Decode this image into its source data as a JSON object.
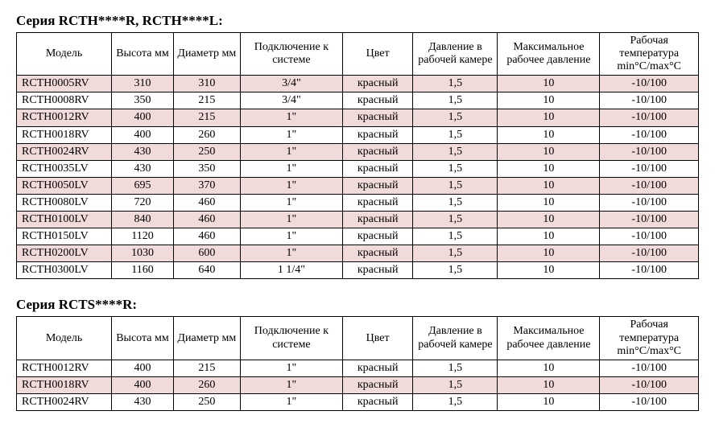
{
  "table1": {
    "title": "Серия RCTH****R, RCTH****L:",
    "shaded_row_bg": "#f1dada",
    "columns": [
      "Модель",
      "Высота мм",
      "Диаметр мм",
      "Подключение к системе",
      "Цвет",
      "Давление в рабочей камере",
      "Максимальное рабочее давление",
      "Рабочая температура min°C/max°C"
    ],
    "rows": [
      {
        "shaded": true,
        "cells": [
          "RCTH0005RV",
          "310",
          "310",
          "3/4\"",
          "красный",
          "1,5",
          "10",
          "-10/100"
        ]
      },
      {
        "shaded": false,
        "cells": [
          "RCTH0008RV",
          "350",
          "215",
          "3/4\"",
          "красный",
          "1,5",
          "10",
          "-10/100"
        ]
      },
      {
        "shaded": true,
        "cells": [
          "RCTH0012RV",
          "400",
          "215",
          "1\"",
          "красный",
          "1,5",
          "10",
          "-10/100"
        ]
      },
      {
        "shaded": false,
        "cells": [
          "RCTH0018RV",
          "400",
          "260",
          "1\"",
          "красный",
          "1,5",
          "10",
          "-10/100"
        ]
      },
      {
        "shaded": true,
        "cells": [
          "RCTH0024RV",
          "430",
          "250",
          "1\"",
          "красный",
          "1,5",
          "10",
          "-10/100"
        ]
      },
      {
        "shaded": false,
        "cells": [
          "RCTH0035LV",
          "430",
          "350",
          "1\"",
          "красный",
          "1,5",
          "10",
          "-10/100"
        ]
      },
      {
        "shaded": true,
        "cells": [
          "RCTH0050LV",
          "695",
          "370",
          "1\"",
          "красный",
          "1,5",
          "10",
          "-10/100"
        ]
      },
      {
        "shaded": false,
        "cells": [
          "RCTH0080LV",
          "720",
          "460",
          "1\"",
          "красный",
          "1,5",
          "10",
          "-10/100"
        ]
      },
      {
        "shaded": true,
        "cells": [
          "RCTH0100LV",
          "840",
          "460",
          "1\"",
          "красный",
          "1,5",
          "10",
          "-10/100"
        ]
      },
      {
        "shaded": false,
        "cells": [
          "RCTH0150LV",
          "1120",
          "460",
          "1\"",
          "красный",
          "1,5",
          "10",
          "-10/100"
        ]
      },
      {
        "shaded": true,
        "cells": [
          "RCTH0200LV",
          "1030",
          "600",
          "1\"",
          "красный",
          "1,5",
          "10",
          "-10/100"
        ]
      },
      {
        "shaded": false,
        "cells": [
          "RCTH0300LV",
          "1160",
          "640",
          "1 1/4\"",
          "красный",
          "1,5",
          "10",
          "-10/100"
        ]
      }
    ]
  },
  "table2": {
    "title": "Серия RCTS****R:",
    "shaded_row_bg": "#f1dada",
    "columns": [
      "Модель",
      "Высота мм",
      "Диаметр мм",
      "Подключение к системе",
      "Цвет",
      "Давление в рабочей камере",
      "Максимальное рабочее давление",
      "Рабочая температура min°C/max°C"
    ],
    "rows": [
      {
        "shaded": false,
        "cells": [
          "RCTH0012RV",
          "400",
          "215",
          "1\"",
          "красный",
          "1,5",
          "10",
          "-10/100"
        ]
      },
      {
        "shaded": true,
        "cells": [
          "RCTH0018RV",
          "400",
          "260",
          "1\"",
          "красный",
          "1,5",
          "10",
          "-10/100"
        ]
      },
      {
        "shaded": false,
        "cells": [
          "RCTH0024RV",
          "430",
          "250",
          "1\"",
          "красный",
          "1,5",
          "10",
          "-10/100"
        ]
      }
    ]
  }
}
